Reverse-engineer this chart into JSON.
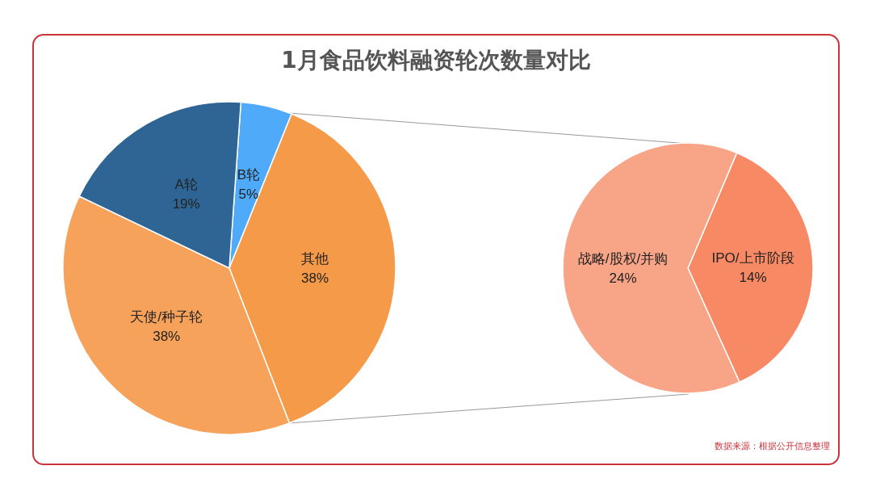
{
  "chart_data": [
    {
      "type": "pie",
      "title": "1月食品饮料融资轮次数量对比",
      "categories": [
        "B轮",
        "其他",
        "天使/种子轮",
        "A轮"
      ],
      "values": [
        5,
        38,
        38,
        19
      ],
      "value_labels": [
        "5%",
        "38%",
        "38%",
        "19%"
      ],
      "colors": [
        "#4faaf9",
        "#f59a48",
        "#f7a25a",
        "#2e6594"
      ],
      "annotations": [
        "数据来源：根据公开信息整理"
      ]
    },
    {
      "type": "pie",
      "categories": [
        "IPO/上市阶段",
        "战略/股权/并购"
      ],
      "values": [
        14,
        24
      ],
      "value_labels": [
        "14%",
        "24%"
      ],
      "colors": [
        "#f78a64",
        "#f8a487"
      ]
    }
  ]
}
